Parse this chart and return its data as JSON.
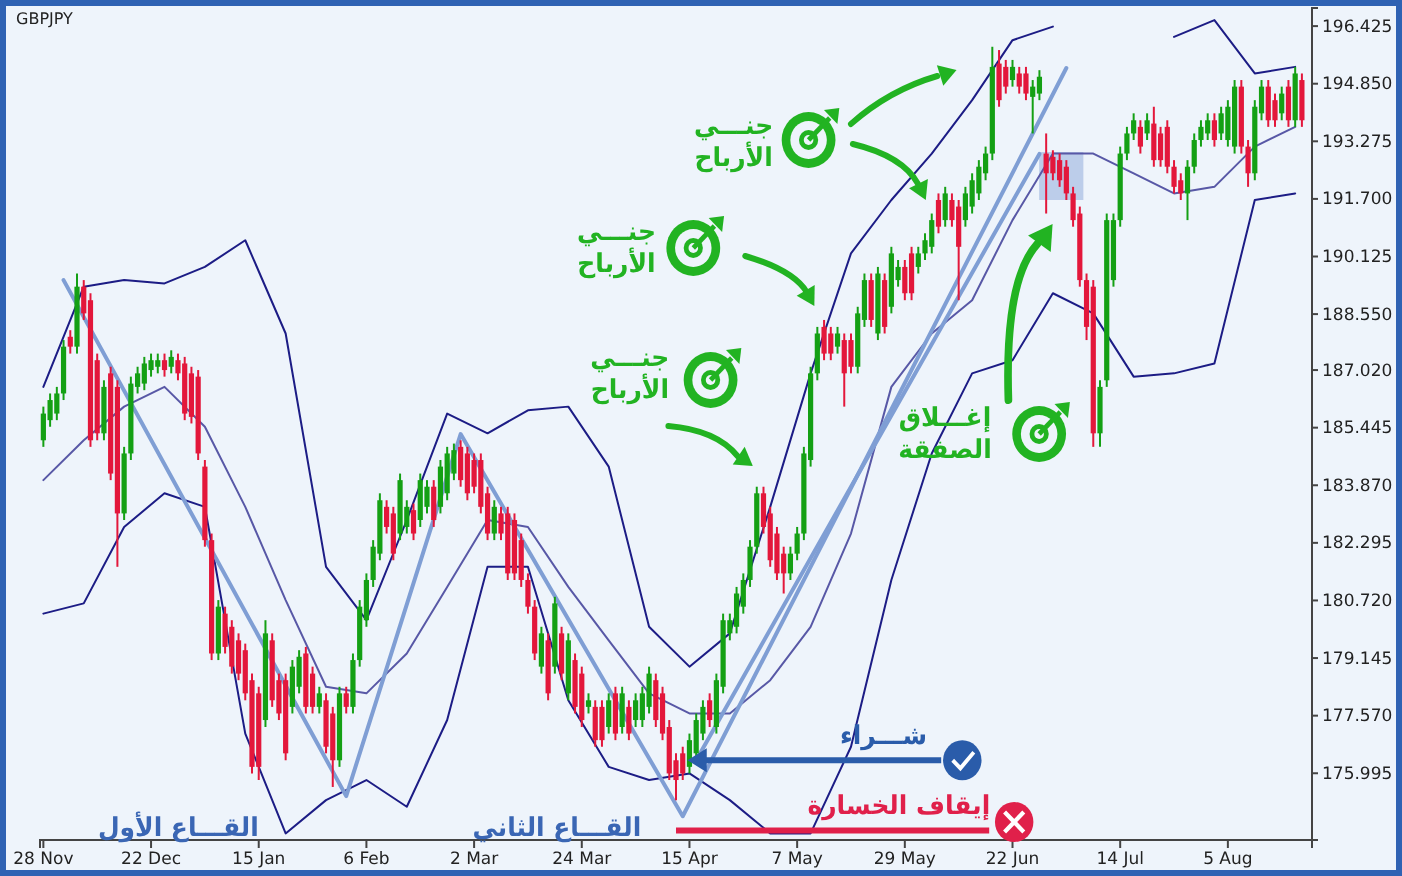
{
  "chart_data": {
    "type": "candlestick",
    "title": "GBPJPY",
    "ylim": [
      174.17,
      196.92
    ],
    "categories": [
      "28 Nov",
      null,
      null,
      null,
      null,
      null,
      null,
      null,
      null,
      null,
      null,
      null,
      null,
      null,
      null,
      null,
      "22 Dec",
      null,
      null,
      null,
      null,
      null,
      null,
      null,
      null,
      null,
      null,
      null,
      null,
      null,
      null,
      null,
      "15 Jan",
      null,
      null,
      null,
      null,
      null,
      null,
      null,
      null,
      null,
      null,
      null,
      null,
      null,
      null,
      null,
      "6 Feb",
      null,
      null,
      null,
      null,
      null,
      null,
      null,
      null,
      null,
      null,
      null,
      null,
      null,
      null,
      null,
      "2 Mar",
      null,
      null,
      null,
      null,
      null,
      null,
      null,
      null,
      null,
      null,
      null,
      null,
      null,
      null,
      null,
      "24 Mar",
      null,
      null,
      null,
      null,
      null,
      null,
      null,
      null,
      null,
      null,
      null,
      null,
      null,
      null,
      null,
      "15 Apr",
      null,
      null,
      null,
      null,
      null,
      null,
      null,
      null,
      null,
      null,
      null,
      null,
      null,
      null,
      null,
      "7 May",
      null,
      null,
      null,
      null,
      null,
      null,
      null,
      null,
      null,
      null,
      null,
      null,
      null,
      null,
      null,
      "29 May",
      null,
      null,
      null,
      null,
      null,
      null,
      null,
      null,
      null,
      null,
      null,
      null,
      null,
      null,
      null,
      "22 Jun",
      null,
      null,
      null,
      null,
      null,
      null,
      null,
      null,
      null,
      null,
      null,
      null,
      null,
      null,
      null,
      "14 Jul",
      null,
      null,
      null,
      null,
      null,
      null,
      null,
      null,
      null,
      null,
      null,
      null,
      null,
      null,
      null,
      "5 Aug",
      null,
      null,
      null,
      null,
      null,
      null,
      null,
      null,
      null,
      null,
      null
    ],
    "yticks": [
      {
        "value": 196.425,
        "label": "196.425"
      },
      {
        "value": 194.85,
        "label": "194.850"
      },
      {
        "value": 193.275,
        "label": "193.275"
      },
      {
        "value": 191.7,
        "label": "191.700"
      },
      {
        "value": 190.125,
        "label": "190.125"
      },
      {
        "value": 188.55,
        "label": "188.550"
      },
      {
        "value": 187.02,
        "label": "187.020"
      },
      {
        "value": 185.445,
        "label": "185.445"
      },
      {
        "value": 183.87,
        "label": "183.870"
      },
      {
        "value": 182.295,
        "label": "182.295"
      },
      {
        "value": 180.72,
        "label": "180.720"
      },
      {
        "value": 179.145,
        "label": "179.145"
      },
      {
        "value": 177.57,
        "label": "177.570"
      },
      {
        "value": 175.995,
        "label": "175.995"
      }
    ],
    "ohlc": [
      [
        185.1,
        186.02,
        184.92,
        185.83
      ],
      [
        185.65,
        186.38,
        185.47,
        186.2
      ],
      [
        185.83,
        186.56,
        185.65,
        186.38
      ],
      [
        186.38,
        187.84,
        186.2,
        187.66
      ],
      [
        187.93,
        188.11,
        187.47,
        187.66
      ],
      [
        187.66,
        189.66,
        187.47,
        189.3
      ],
      [
        189.3,
        189.48,
        188.39,
        188.57
      ],
      [
        188.93,
        189.12,
        184.92,
        185.1
      ],
      [
        187.29,
        187.47,
        185.1,
        185.29
      ],
      [
        185.29,
        186.74,
        185.1,
        186.56
      ],
      [
        186.93,
        187.11,
        184.01,
        184.19
      ],
      [
        186.56,
        186.74,
        181.64,
        183.1
      ],
      [
        183.1,
        184.92,
        182.92,
        184.74
      ],
      [
        184.74,
        186.84,
        184.56,
        186.65
      ],
      [
        186.56,
        187.11,
        186.38,
        186.93
      ],
      [
        186.65,
        187.38,
        186.47,
        187.2
      ],
      [
        187.02,
        187.47,
        186.84,
        187.29
      ],
      [
        187.11,
        187.47,
        186.93,
        187.29
      ],
      [
        187.29,
        187.47,
        186.84,
        187.02
      ],
      [
        187.11,
        187.56,
        186.93,
        187.38
      ],
      [
        187.29,
        187.47,
        186.74,
        186.93
      ],
      [
        187.2,
        187.38,
        185.65,
        185.83
      ],
      [
        186.93,
        187.11,
        185.56,
        185.74
      ],
      [
        186.84,
        187.02,
        184.56,
        184.74
      ],
      [
        184.38,
        184.56,
        182.19,
        182.37
      ],
      [
        182.37,
        182.55,
        179.09,
        179.27
      ],
      [
        179.27,
        180.73,
        179.09,
        180.55
      ],
      [
        180.36,
        180.55,
        179.27,
        179.45
      ],
      [
        180.0,
        180.18,
        178.72,
        178.91
      ],
      [
        179.63,
        179.82,
        178.54,
        178.72
      ],
      [
        179.36,
        179.54,
        177.99,
        178.18
      ],
      [
        178.54,
        178.72,
        175.99,
        176.17
      ],
      [
        178.18,
        178.36,
        175.81,
        176.17
      ],
      [
        177.45,
        180.18,
        177.26,
        179.82
      ],
      [
        179.63,
        179.82,
        177.81,
        177.99
      ],
      [
        178.54,
        178.72,
        177.45,
        177.63
      ],
      [
        178.54,
        178.72,
        176.35,
        176.54
      ],
      [
        177.81,
        179.09,
        177.63,
        178.91
      ],
      [
        178.36,
        179.36,
        178.18,
        179.18
      ],
      [
        179.27,
        179.45,
        177.63,
        177.81
      ],
      [
        178.72,
        178.91,
        177.63,
        177.81
      ],
      [
        177.81,
        178.36,
        177.63,
        178.18
      ],
      [
        177.99,
        178.18,
        176.54,
        176.72
      ],
      [
        177.63,
        177.81,
        175.62,
        176.35
      ],
      [
        176.35,
        178.36,
        176.17,
        178.18
      ],
      [
        178.18,
        178.36,
        177.63,
        177.81
      ],
      [
        177.81,
        179.27,
        177.63,
        179.09
      ],
      [
        179.09,
        180.73,
        178.91,
        180.55
      ],
      [
        180.18,
        181.46,
        180.0,
        181.28
      ],
      [
        181.28,
        182.37,
        181.09,
        182.19
      ],
      [
        182.0,
        183.65,
        181.82,
        183.46
      ],
      [
        183.28,
        183.46,
        182.55,
        182.73
      ],
      [
        183.1,
        183.28,
        181.82,
        182.0
      ],
      [
        182.55,
        184.19,
        182.37,
        184.01
      ],
      [
        182.73,
        183.46,
        182.55,
        183.28
      ],
      [
        183.19,
        183.37,
        182.37,
        182.55
      ],
      [
        182.92,
        184.19,
        182.73,
        184.01
      ],
      [
        183.28,
        184.01,
        183.1,
        183.83
      ],
      [
        183.83,
        184.01,
        182.73,
        182.92
      ],
      [
        183.28,
        184.56,
        183.1,
        184.38
      ],
      [
        183.65,
        184.92,
        183.46,
        184.74
      ],
      [
        184.19,
        185.01,
        184.01,
        184.83
      ],
      [
        184.92,
        185.1,
        183.83,
        184.01
      ],
      [
        184.74,
        184.92,
        183.46,
        183.65
      ],
      [
        184.56,
        184.74,
        183.65,
        183.83
      ],
      [
        184.56,
        184.74,
        183.1,
        183.28
      ],
      [
        183.65,
        183.83,
        182.37,
        182.55
      ],
      [
        182.55,
        183.46,
        182.37,
        183.28
      ],
      [
        183.1,
        183.28,
        182.37,
        182.55
      ],
      [
        183.1,
        183.28,
        181.28,
        181.46
      ],
      [
        182.92,
        183.1,
        181.28,
        181.46
      ],
      [
        182.37,
        182.55,
        181.09,
        181.28
      ],
      [
        181.28,
        181.46,
        180.36,
        180.55
      ],
      [
        180.55,
        180.73,
        179.09,
        179.27
      ],
      [
        178.91,
        180.0,
        178.72,
        179.82
      ],
      [
        179.63,
        179.82,
        177.99,
        178.18
      ],
      [
        178.91,
        180.82,
        178.72,
        180.64
      ],
      [
        179.82,
        180.0,
        178.54,
        178.72
      ],
      [
        178.18,
        179.82,
        177.99,
        179.63
      ],
      [
        179.09,
        179.27,
        177.63,
        177.81
      ],
      [
        178.72,
        178.91,
        177.26,
        177.45
      ],
      [
        177.81,
        178.18,
        177.63,
        177.99
      ],
      [
        177.81,
        177.99,
        176.72,
        176.9
      ],
      [
        177.81,
        177.99,
        176.72,
        176.9
      ],
      [
        177.26,
        178.18,
        177.08,
        177.99
      ],
      [
        178.18,
        178.36,
        176.9,
        177.08
      ],
      [
        177.26,
        178.36,
        177.08,
        178.18
      ],
      [
        177.81,
        177.99,
        176.9,
        177.08
      ],
      [
        177.45,
        178.18,
        177.26,
        177.99
      ],
      [
        177.45,
        178.36,
        177.26,
        178.18
      ],
      [
        177.81,
        178.91,
        177.63,
        178.72
      ],
      [
        178.54,
        178.72,
        177.26,
        177.45
      ],
      [
        178.18,
        178.36,
        176.9,
        177.08
      ],
      [
        177.26,
        177.45,
        175.81,
        175.99
      ],
      [
        176.35,
        176.54,
        175.26,
        175.81
      ],
      [
        176.54,
        176.72,
        175.81,
        175.99
      ],
      [
        176.17,
        177.08,
        175.99,
        176.9
      ],
      [
        176.54,
        177.63,
        176.35,
        177.45
      ],
      [
        177.08,
        177.99,
        176.9,
        177.81
      ],
      [
        177.99,
        178.18,
        177.26,
        177.45
      ],
      [
        177.26,
        178.72,
        177.08,
        178.54
      ],
      [
        178.36,
        180.36,
        178.18,
        180.18
      ],
      [
        179.82,
        180.36,
        179.63,
        180.18
      ],
      [
        180.0,
        181.09,
        179.82,
        180.91
      ],
      [
        180.55,
        181.46,
        180.36,
        181.28
      ],
      [
        181.28,
        182.37,
        181.09,
        182.19
      ],
      [
        182.19,
        183.83,
        182.0,
        183.65
      ],
      [
        183.65,
        183.83,
        182.55,
        182.73
      ],
      [
        183.1,
        183.28,
        181.64,
        181.82
      ],
      [
        182.55,
        182.73,
        181.28,
        181.46
      ],
      [
        182.0,
        182.19,
        180.91,
        181.46
      ],
      [
        181.46,
        182.19,
        181.28,
        182.0
      ],
      [
        182.0,
        182.73,
        181.82,
        182.55
      ],
      [
        182.55,
        184.92,
        182.37,
        184.74
      ],
      [
        184.56,
        187.11,
        184.38,
        186.93
      ],
      [
        186.93,
        188.2,
        186.74,
        188.02
      ],
      [
        188.2,
        188.39,
        187.29,
        187.47
      ],
      [
        188.02,
        188.2,
        187.29,
        187.47
      ],
      [
        187.66,
        188.2,
        187.47,
        188.02
      ],
      [
        187.84,
        188.02,
        186.02,
        186.93
      ],
      [
        187.84,
        188.02,
        186.93,
        187.11
      ],
      [
        187.11,
        188.75,
        186.93,
        188.57
      ],
      [
        188.39,
        189.66,
        188.2,
        189.48
      ],
      [
        189.48,
        189.66,
        188.2,
        188.39
      ],
      [
        188.02,
        189.84,
        187.84,
        189.66
      ],
      [
        189.48,
        189.66,
        188.02,
        188.2
      ],
      [
        188.75,
        190.39,
        188.57,
        190.21
      ],
      [
        189.48,
        190.03,
        189.3,
        189.84
      ],
      [
        189.84,
        190.03,
        188.93,
        189.12
      ],
      [
        190.21,
        190.39,
        188.93,
        189.12
      ],
      [
        189.84,
        190.39,
        189.66,
        190.21
      ],
      [
        190.21,
        190.76,
        190.03,
        190.57
      ],
      [
        190.39,
        191.3,
        190.21,
        191.12
      ],
      [
        191.67,
        191.85,
        190.76,
        190.94
      ],
      [
        191.12,
        192.03,
        190.94,
        191.85
      ],
      [
        191.67,
        191.85,
        190.94,
        191.12
      ],
      [
        191.49,
        191.67,
        188.93,
        190.39
      ],
      [
        191.12,
        192.03,
        190.94,
        191.85
      ],
      [
        191.49,
        192.4,
        191.3,
        192.21
      ],
      [
        191.85,
        192.76,
        191.67,
        192.58
      ],
      [
        192.4,
        193.13,
        192.21,
        192.94
      ],
      [
        192.94,
        195.86,
        192.76,
        195.31
      ],
      [
        195.4,
        195.77,
        194.22,
        194.4
      ],
      [
        195.31,
        195.5,
        194.58,
        194.77
      ],
      [
        194.95,
        195.5,
        194.77,
        195.31
      ],
      [
        195.13,
        195.31,
        194.58,
        194.77
      ],
      [
        195.13,
        195.31,
        194.4,
        194.58
      ],
      [
        194.49,
        194.95,
        193.49,
        194.77
      ],
      [
        194.58,
        195.22,
        194.4,
        195.04
      ],
      [
        192.94,
        193.49,
        191.3,
        192.4
      ],
      [
        192.85,
        193.03,
        192.21,
        192.4
      ],
      [
        192.76,
        192.94,
        192.03,
        192.21
      ],
      [
        192.58,
        192.76,
        191.67,
        191.85
      ],
      [
        191.85,
        192.03,
        190.94,
        191.12
      ],
      [
        191.3,
        191.49,
        189.3,
        189.48
      ],
      [
        189.48,
        189.66,
        187.84,
        188.2
      ],
      [
        189.3,
        189.48,
        184.92,
        185.29
      ],
      [
        185.29,
        186.74,
        184.92,
        186.56
      ],
      [
        186.74,
        191.3,
        186.56,
        191.12
      ],
      [
        189.48,
        191.3,
        189.3,
        191.12
      ],
      [
        191.12,
        193.13,
        190.94,
        192.94
      ],
      [
        192.94,
        193.67,
        192.76,
        193.49
      ],
      [
        193.49,
        194.04,
        193.31,
        193.85
      ],
      [
        193.67,
        193.85,
        192.94,
        193.13
      ],
      [
        193.49,
        194.04,
        193.31,
        193.85
      ],
      [
        193.76,
        194.22,
        192.58,
        192.76
      ],
      [
        193.49,
        193.67,
        192.58,
        192.76
      ],
      [
        193.67,
        193.85,
        192.4,
        192.58
      ],
      [
        192.58,
        192.76,
        191.85,
        192.03
      ],
      [
        192.21,
        192.4,
        191.67,
        191.85
      ],
      [
        191.85,
        192.76,
        191.12,
        192.58
      ],
      [
        192.58,
        193.49,
        192.4,
        193.31
      ],
      [
        193.31,
        193.85,
        193.13,
        193.67
      ],
      [
        193.49,
        194.04,
        193.31,
        193.85
      ],
      [
        193.85,
        194.04,
        193.13,
        193.31
      ],
      [
        193.49,
        194.22,
        193.31,
        194.04
      ],
      [
        193.31,
        194.4,
        193.13,
        194.22
      ],
      [
        193.13,
        194.95,
        192.94,
        194.77
      ],
      [
        194.77,
        194.95,
        192.94,
        193.13
      ],
      [
        193.13,
        193.31,
        192.03,
        192.4
      ],
      [
        192.4,
        194.4,
        192.21,
        194.22
      ],
      [
        194.04,
        194.95,
        193.85,
        194.77
      ],
      [
        194.77,
        194.95,
        193.67,
        193.85
      ],
      [
        194.4,
        194.58,
        193.67,
        193.85
      ],
      [
        194.04,
        194.77,
        193.85,
        194.58
      ],
      [
        194.77,
        194.95,
        193.67,
        193.85
      ],
      [
        193.85,
        195.31,
        193.67,
        195.13
      ],
      [
        194.95,
        195.13,
        193.67,
        193.85
      ]
    ],
    "series": [
      {
        "type": "line",
        "color": "#1c1c85",
        "values": [
          186.56,
          null,
          null,
          null,
          null,
          null,
          189.3,
          null,
          null,
          null,
          null,
          null,
          189.48,
          null,
          null,
          null,
          null,
          null,
          189.39,
          null,
          null,
          null,
          null,
          null,
          189.84,
          null,
          null,
          null,
          null,
          null,
          190.57,
          null,
          null,
          null,
          null,
          null,
          188.02,
          null,
          null,
          null,
          null,
          null,
          181.64,
          null,
          null,
          null,
          null,
          null,
          180.18,
          null,
          null,
          null,
          null,
          null,
          182.92,
          null,
          null,
          null,
          null,
          null,
          185.83,
          null,
          null,
          null,
          null,
          null,
          185.29,
          null,
          null,
          null,
          null,
          null,
          185.92,
          null,
          null,
          null,
          null,
          null,
          186.02,
          null,
          null,
          null,
          null,
          null,
          184.38,
          null,
          null,
          null,
          null,
          null,
          180.0,
          null,
          null,
          null,
          null,
          null,
          178.91,
          null,
          null,
          null,
          null,
          null,
          179.82,
          null,
          null,
          null,
          null,
          null,
          183.28,
          null,
          null,
          null,
          null,
          null,
          186.93,
          null,
          null,
          null,
          null,
          null,
          190.21,
          null,
          null,
          null,
          null,
          null,
          191.67,
          null,
          null,
          null,
          null,
          null,
          192.94,
          null,
          null,
          null,
          null,
          null,
          194.4,
          null,
          null,
          null,
          null,
          null,
          196.04,
          null,
          null,
          null,
          null,
          null,
          196.41,
          null,
          null,
          null,
          null,
          null,
          null,
          null,
          null,
          null,
          null,
          null,
          null,
          null,
          null,
          null,
          null,
          null,
          null,
          null,
          null,
          null,
          null,
          null,
          null,
          null,
          null,
          null,
          null,
          null,
          null,
          null,
          null,
          null,
          null,
          null,
          null,
          null
        ]
      },
      {
        "type": "line",
        "color": "#1c1c85",
        "values": [
          null,
          null,
          null,
          null,
          null,
          null,
          null,
          null,
          null,
          null,
          null,
          null,
          null,
          null,
          null,
          null,
          null,
          null,
          null,
          null,
          null,
          null,
          null,
          null,
          null,
          null,
          null,
          null,
          null,
          null,
          null,
          null,
          null,
          null,
          null,
          null,
          null,
          null,
          null,
          null,
          null,
          null,
          null,
          null,
          null,
          null,
          null,
          null,
          null,
          null,
          null,
          null,
          null,
          null,
          null,
          null,
          null,
          null,
          null,
          null,
          null,
          null,
          null,
          null,
          null,
          null,
          null,
          null,
          null,
          null,
          null,
          null,
          null,
          null,
          null,
          null,
          null,
          null,
          null,
          null,
          null,
          null,
          null,
          null,
          null,
          null,
          null,
          null,
          null,
          null,
          null,
          null,
          null,
          null,
          null,
          null,
          null,
          null,
          null,
          null,
          null,
          null,
          null,
          null,
          null,
          null,
          null,
          null,
          null,
          null,
          null,
          null,
          null,
          null,
          null,
          null,
          null,
          null,
          null,
          null,
          null,
          null,
          null,
          null,
          null,
          null,
          null,
          null,
          null,
          null,
          null,
          null,
          null,
          null,
          null,
          null,
          null,
          null,
          null,
          null,
          null,
          null,
          null,
          null,
          null,
          null,
          null,
          null,
          null,
          null,
          null,
          null,
          null,
          null,
          null,
          null,
          null,
          null,
          null,
          null,
          null,
          null,
          null,
          null,
          null,
          null,
          null,
          null,
          196.13,
          null,
          null,
          null,
          null,
          null,
          196.59,
          null,
          null,
          null,
          null,
          null,
          195.13,
          null,
          null,
          null,
          null,
          null,
          195.31,
          null
        ]
      },
      {
        "type": "line",
        "color": "#5858a6",
        "values": [
          184.01,
          null,
          null,
          null,
          null,
          null,
          185.1,
          null,
          null,
          null,
          null,
          null,
          186.02,
          null,
          null,
          null,
          null,
          null,
          186.56,
          null,
          null,
          null,
          null,
          null,
          185.47,
          null,
          null,
          null,
          null,
          null,
          183.28,
          null,
          null,
          null,
          null,
          null,
          180.73,
          null,
          null,
          null,
          null,
          null,
          178.36,
          null,
          null,
          null,
          null,
          null,
          178.18,
          null,
          null,
          null,
          null,
          null,
          179.27,
          null,
          null,
          null,
          null,
          null,
          181.09,
          null,
          null,
          null,
          null,
          null,
          182.92,
          null,
          null,
          null,
          null,
          null,
          182.73,
          null,
          null,
          null,
          null,
          null,
          181.09,
          null,
          null,
          null,
          null,
          null,
          179.63,
          null,
          null,
          null,
          null,
          null,
          178.18,
          null,
          null,
          null,
          null,
          null,
          177.63,
          null,
          null,
          null,
          null,
          null,
          177.63,
          null,
          null,
          null,
          null,
          null,
          178.54,
          null,
          null,
          null,
          null,
          null,
          180.0,
          null,
          null,
          null,
          null,
          null,
          182.55,
          null,
          null,
          null,
          null,
          null,
          186.56,
          null,
          null,
          null,
          null,
          null,
          188.02,
          null,
          null,
          null,
          null,
          null,
          188.93,
          null,
          null,
          null,
          null,
          null,
          191.12,
          null,
          null,
          null,
          null,
          null,
          192.94,
          null,
          null,
          null,
          null,
          null,
          192.94,
          null,
          null,
          null,
          null,
          null,
          192.4,
          null,
          null,
          null,
          null,
          null,
          191.85,
          null,
          null,
          null,
          null,
          null,
          192.03,
          null,
          null,
          null,
          null,
          null,
          193.13,
          null,
          null,
          null,
          null,
          null,
          193.67,
          null
        ]
      },
      {
        "type": "line",
        "color": "#1c1c85",
        "values": [
          180.36,
          null,
          null,
          null,
          null,
          null,
          180.64,
          null,
          null,
          null,
          null,
          null,
          182.73,
          null,
          null,
          null,
          null,
          null,
          183.65,
          null,
          null,
          null,
          null,
          null,
          183.28,
          null,
          null,
          null,
          null,
          null,
          177.08,
          null,
          null,
          null,
          null,
          null,
          174.35,
          null,
          null,
          null,
          null,
          null,
          175.26,
          null,
          null,
          null,
          null,
          null,
          175.81,
          null,
          null,
          null,
          null,
          null,
          175.08,
          null,
          null,
          null,
          null,
          null,
          177.45,
          null,
          null,
          null,
          null,
          null,
          181.64,
          null,
          null,
          null,
          null,
          null,
          181.64,
          null,
          null,
          null,
          null,
          null,
          177.99,
          null,
          null,
          null,
          null,
          null,
          176.17,
          null,
          null,
          null,
          null,
          null,
          175.81,
          null,
          null,
          null,
          null,
          null,
          175.99,
          null,
          null,
          null,
          null,
          null,
          175.26,
          null,
          null,
          null,
          null,
          null,
          174.35,
          null,
          null,
          null,
          null,
          null,
          174.35,
          null,
          null,
          null,
          null,
          null,
          176.72,
          null,
          null,
          null,
          null,
          null,
          181.28,
          null,
          null,
          null,
          null,
          null,
          184.74,
          null,
          null,
          null,
          null,
          null,
          186.93,
          null,
          null,
          null,
          null,
          null,
          187.29,
          null,
          null,
          null,
          null,
          null,
          189.12,
          null,
          null,
          null,
          null,
          null,
          188.57,
          null,
          null,
          null,
          null,
          null,
          186.84,
          null,
          null,
          null,
          null,
          null,
          186.93,
          null,
          null,
          null,
          null,
          null,
          187.2,
          null,
          null,
          null,
          null,
          null,
          191.67,
          null,
          null,
          null,
          null,
          null,
          191.85,
          null
        ]
      },
      {
        "type": "line",
        "color": "#7f9ed4",
        "values": [
          null,
          null,
          null,
          189.48,
          null,
          null,
          null,
          null,
          null,
          null,
          null,
          null,
          null,
          null,
          null,
          null,
          null,
          null,
          null,
          null,
          null,
          null,
          null,
          null,
          null,
          null,
          null,
          null,
          null,
          null,
          null,
          null,
          null,
          null,
          null,
          null,
          null,
          null,
          null,
          null,
          null,
          null,
          null,
          null,
          null,
          175.37,
          null,
          null,
          null,
          null,
          null,
          null,
          null,
          null,
          null,
          null,
          null,
          null,
          null,
          null,
          null,
          null,
          185.27,
          null,
          null,
          null,
          null,
          null,
          null,
          null,
          null,
          null,
          null,
          null,
          null,
          null,
          null,
          null,
          null,
          null,
          null,
          null,
          null,
          null,
          null,
          null,
          null,
          null,
          null,
          null,
          null,
          null,
          null,
          null,
          null,
          174.82,
          null,
          null,
          null,
          null,
          null,
          null,
          null,
          null,
          null,
          null,
          null,
          null,
          null,
          null,
          null,
          null,
          null,
          null,
          null,
          null,
          null,
          null,
          null,
          null,
          null,
          null,
          null,
          null,
          null,
          null,
          null,
          null,
          null,
          null,
          null,
          null,
          null,
          null,
          null,
          null,
          null,
          null,
          null,
          null,
          null,
          null,
          null,
          null,
          null,
          null,
          null,
          null,
          null,
          null,
          null,
          null,
          195.28,
          null,
          null,
          null,
          null,
          null,
          null,
          null,
          null,
          null,
          null,
          null,
          null,
          null,
          null,
          null,
          null,
          null,
          null,
          null,
          null,
          null,
          null,
          null,
          null,
          null,
          null,
          null,
          null,
          null,
          null,
          null,
          null,
          null,
          null,
          null
        ]
      },
      {
        "type": "line",
        "color": "#7f9ed4",
        "values": [
          null,
          null,
          null,
          null,
          null,
          null,
          null,
          null,
          null,
          null,
          null,
          null,
          null,
          null,
          null,
          null,
          null,
          null,
          null,
          null,
          null,
          null,
          null,
          null,
          null,
          null,
          null,
          null,
          null,
          null,
          null,
          null,
          null,
          null,
          null,
          null,
          null,
          null,
          null,
          null,
          null,
          null,
          null,
          null,
          null,
          null,
          null,
          null,
          null,
          null,
          null,
          null,
          null,
          null,
          null,
          null,
          null,
          null,
          null,
          null,
          null,
          null,
          null,
          null,
          null,
          null,
          null,
          null,
          null,
          null,
          null,
          null,
          null,
          null,
          null,
          null,
          null,
          null,
          null,
          null,
          null,
          null,
          null,
          null,
          null,
          null,
          null,
          null,
          null,
          null,
          null,
          null,
          null,
          null,
          null,
          null,
          null,
          176.35,
          null,
          null,
          null,
          null,
          null,
          null,
          null,
          null,
          null,
          null,
          null,
          null,
          null,
          null,
          null,
          null,
          null,
          null,
          null,
          null,
          null,
          null,
          null,
          null,
          null,
          null,
          null,
          null,
          null,
          null,
          null,
          null,
          null,
          null,
          null,
          null,
          null,
          null,
          null,
          null,
          null,
          null,
          null,
          null,
          null,
          null,
          null,
          null,
          null,
          null,
          192.93,
          null,
          null,
          null,
          null,
          null,
          null,
          null,
          null,
          null,
          null,
          null,
          null,
          null,
          null,
          null,
          null,
          null,
          null,
          null,
          null,
          null,
          null,
          null,
          null,
          null,
          null,
          null,
          null,
          null,
          null,
          null,
          null,
          null,
          null,
          null,
          null,
          null,
          null,
          null
        ]
      }
    ],
    "ref_lines": [
      {
        "axis": "y",
        "value": 176.35,
        "label": "شـــراء",
        "color": "#2a5caa"
      },
      {
        "axis": "y",
        "value": 174.43,
        "label": "إيقاف الخسارة",
        "color": "#e0204a"
      }
    ],
    "annotations": [
      "جنـــي\nالأرباح",
      "جنـــي\nالأرباح",
      "جنـــي\nالأرباح",
      "إغـــلاق\nالصفقة",
      "القـــاع الأول",
      "القـــاع الثاني"
    ]
  }
}
